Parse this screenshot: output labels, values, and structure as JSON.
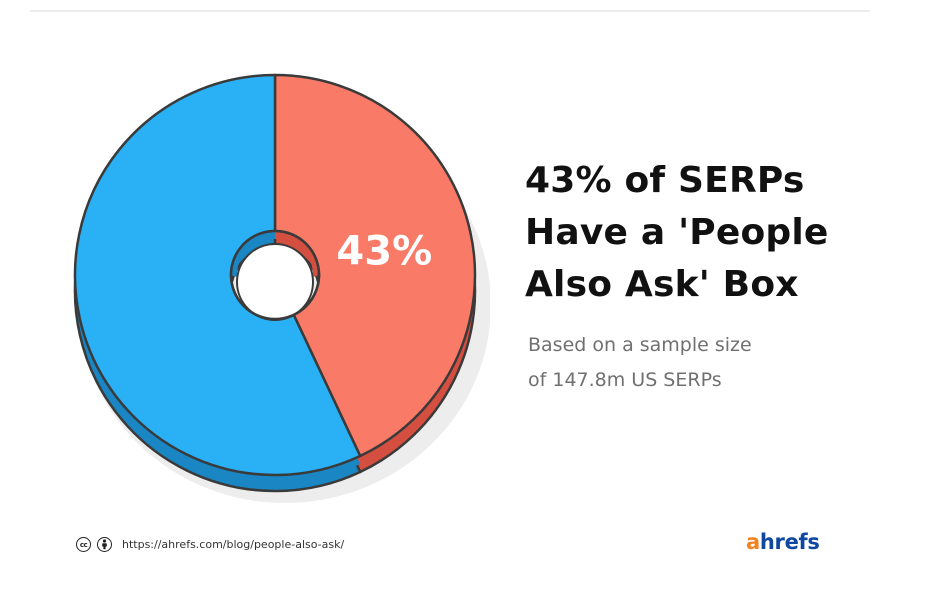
{
  "chart_data": {
    "type": "pie",
    "title": "43% of SERPs Have a 'People Also Ask' Box",
    "subtitle": "Based on a sample size of 147.8m US SERPs",
    "slices": [
      {
        "value": 43,
        "color": "#fa7a68",
        "side_color": "#d44f40",
        "label": "43%"
      },
      {
        "value": 57,
        "color": "#29b0f5",
        "side_color": "#1a86c4"
      }
    ]
  },
  "headline_lines": [
    "43% of SERPs",
    "Have a 'People",
    "Also Ask' Box"
  ],
  "subtext_lines": [
    "Based on a sample size",
    "of 147.8m US SERPs"
  ],
  "footer": {
    "cc_icon": "creative-commons-icon",
    "by_icon": "attribution-icon",
    "cc_text": "cc",
    "url": "https://ahrefs.com/blog/people-also-ask/"
  },
  "brand": {
    "first": "a",
    "rest": "hrefs"
  }
}
